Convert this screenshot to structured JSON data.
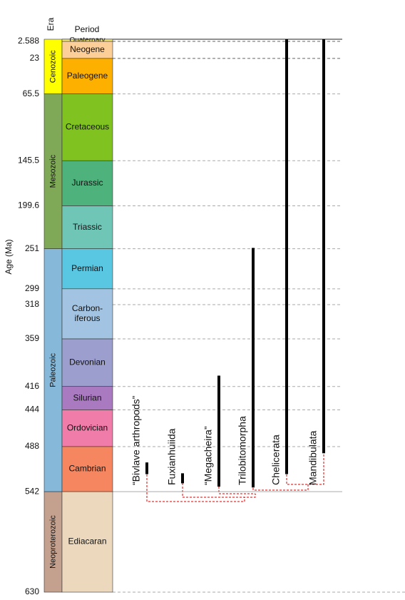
{
  "headers": {
    "era": "Era",
    "period": "Period"
  },
  "axis_label": "Age (Ma)",
  "ticks": [
    2.588,
    23,
    65.5,
    145.5,
    199.6,
    251,
    299,
    318,
    359,
    416,
    444,
    488,
    542,
    630
  ],
  "eras": [
    {
      "name": "Cenozoic",
      "start": 0,
      "end": 65.5,
      "color": "#ffff00"
    },
    {
      "name": "Mesozoic",
      "start": 65.5,
      "end": 251,
      "color": "#7fa956"
    },
    {
      "name": "Paleozoic",
      "start": 251,
      "end": 542,
      "color": "#86b9d9"
    },
    {
      "name": "Neoproterozoic",
      "start": 542,
      "end": 630,
      "color": "#c4a08e"
    }
  ],
  "periods": [
    {
      "name": "Quaternary",
      "start": 0,
      "end": 2.588,
      "color": "#fbf27a"
    },
    {
      "name": "Neogene",
      "start": 2.588,
      "end": 23,
      "color": "#fccf99"
    },
    {
      "name": "Paleogene",
      "start": 23,
      "end": 65.5,
      "color": "#fdb000"
    },
    {
      "name": "Cretaceous",
      "start": 65.5,
      "end": 145.5,
      "color": "#80c21f"
    },
    {
      "name": "Jurassic",
      "start": 145.5,
      "end": 199.6,
      "color": "#4db27b"
    },
    {
      "name": "Triassic",
      "start": 199.6,
      "end": 251,
      "color": "#6fc6b7"
    },
    {
      "name": "Permian",
      "start": 251,
      "end": 299,
      "color": "#59c6e2"
    },
    {
      "name": "Carbon-\niferous",
      "start": 299,
      "end": 359,
      "color": "#a2c4e2"
    },
    {
      "name": "Devonian",
      "start": 359,
      "end": 416,
      "color": "#9c9ece"
    },
    {
      "name": "Silurian",
      "start": 416,
      "end": 444,
      "color": "#a97ac0"
    },
    {
      "name": "Ordovician",
      "start": 444,
      "end": 488,
      "color": "#f07ca9"
    },
    {
      "name": "Cambrian",
      "start": 488,
      "end": 542,
      "color": "#f5865f"
    },
    {
      "name": "Ediacaran",
      "start": 542,
      "end": 630,
      "color": "#ecd9bd"
    }
  ],
  "taxa": [
    {
      "name": "“Bivlave arthropods”",
      "top": 507,
      "bottom": 521
    },
    {
      "name": "Fuxianhuiida",
      "top": 520,
      "bottom": 532
    },
    {
      "name": "“Megacheira”",
      "top": 403,
      "bottom": 536
    },
    {
      "name": "Trilobitomorpha",
      "top": 250,
      "bottom": 537
    },
    {
      "name": "Chelicerata",
      "top": 0,
      "bottom": 521
    },
    {
      "name": "Mandibulata",
      "top": 0,
      "bottom": 496
    }
  ]
}
